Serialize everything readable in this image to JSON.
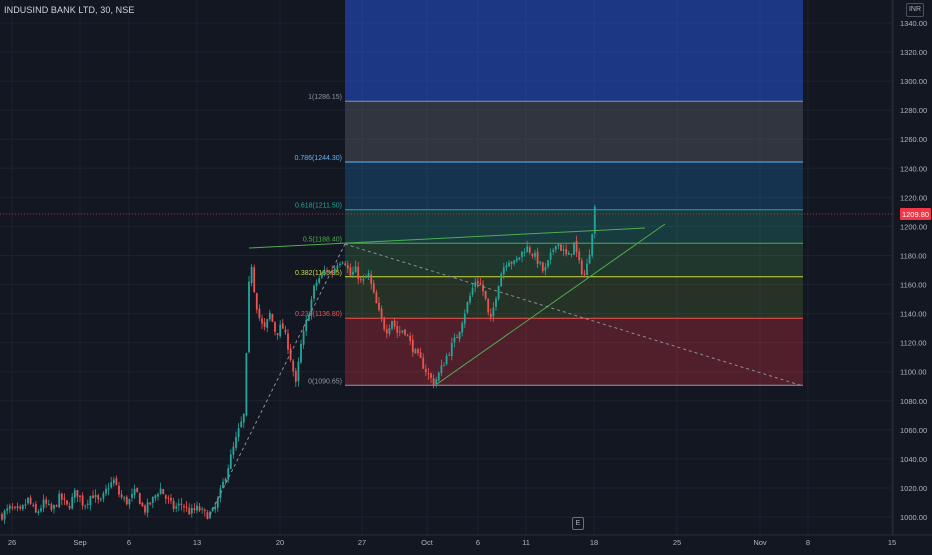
{
  "symbol": {
    "title": "INDUSIND BANK LTD, 30, NSE",
    "currency": "INR"
  },
  "colors": {
    "background": "#131722",
    "up_candle": "#26a69a",
    "down_candle": "#ef5350",
    "current_price_line": "#f23645",
    "trendline": "#4caf50"
  },
  "price_axis": {
    "labels": [
      "1340.00",
      "1320.00",
      "1300.00",
      "1280.00",
      "1260.00",
      "1240.00",
      "1220.00",
      "1200.00",
      "1180.00",
      "1160.00",
      "1140.00",
      "1120.00",
      "1100.00",
      "1080.00",
      "1060.00",
      "1040.00",
      "1020.00",
      "1000.00"
    ],
    "current_price": "1209.80"
  },
  "time_axis": {
    "labels": [
      "26",
      "Sep",
      "6",
      "13",
      "20",
      "27",
      "Oct",
      "6",
      "11",
      "18",
      "25",
      "Nov",
      "8",
      "15"
    ]
  },
  "fib_levels": [
    {
      "label": "1(1286.15)",
      "color": "#8f94a3"
    },
    {
      "label": "0.786(1244.30)",
      "color": "#64b5f6"
    },
    {
      "label": "0.618(1211.50)",
      "color": "#26a69a"
    },
    {
      "label": "0.5(1188.40)",
      "color": "#4caf50"
    },
    {
      "label": "0.382(1165.35)",
      "color": "#cddc39"
    },
    {
      "label": "0.236(1136.80)",
      "color": "#ef5350"
    },
    {
      "label": "0(1090.65)",
      "color": "#9598a1"
    }
  ],
  "toolbar": {
    "events_label": "E"
  },
  "chart_data": {
    "type": "candlestick",
    "title": "INDUSIND BANK LTD, 30, NSE",
    "ylim": [
      995,
      1347
    ],
    "close_path": [
      [
        0,
        1000
      ],
      [
        10,
        1006
      ],
      [
        20,
        1003
      ],
      [
        28,
        1012
      ],
      [
        36,
        1002
      ],
      [
        44,
        1010
      ],
      [
        52,
        1004
      ],
      [
        60,
        1014
      ],
      [
        68,
        1006
      ],
      [
        76,
        1018
      ],
      [
        84,
        1008
      ],
      [
        92,
        1016
      ],
      [
        100,
        1009
      ],
      [
        108,
        1021
      ],
      [
        114,
        1025
      ],
      [
        120,
        1014
      ],
      [
        128,
        1010
      ],
      [
        136,
        1018
      ],
      [
        144,
        1004
      ],
      [
        152,
        1011
      ],
      [
        160,
        1020
      ],
      [
        166,
        1013
      ],
      [
        174,
        1006
      ],
      [
        182,
        1009
      ],
      [
        190,
        1003
      ],
      [
        198,
        1006
      ],
      [
        206,
        1001
      ],
      [
        214,
        1004
      ],
      [
        220,
        1016
      ],
      [
        226,
        1030
      ],
      [
        232,
        1044
      ],
      [
        238,
        1058
      ],
      [
        244,
        1070
      ],
      [
        246,
        1100
      ],
      [
        248,
        1150
      ],
      [
        251,
        1178
      ],
      [
        254,
        1158
      ],
      [
        258,
        1140
      ],
      [
        264,
        1128
      ],
      [
        270,
        1140
      ],
      [
        276,
        1126
      ],
      [
        282,
        1132
      ],
      [
        288,
        1118
      ],
      [
        292,
        1105
      ],
      [
        296,
        1090
      ],
      [
        300,
        1115
      ],
      [
        305,
        1130
      ],
      [
        310,
        1145
      ],
      [
        315,
        1160
      ],
      [
        320,
        1165
      ],
      [
        326,
        1170
      ],
      [
        332,
        1168
      ],
      [
        338,
        1176
      ],
      [
        344,
        1178
      ],
      [
        350,
        1166
      ],
      [
        356,
        1170
      ],
      [
        362,
        1160
      ],
      [
        368,
        1168
      ],
      [
        374,
        1152
      ],
      [
        380,
        1138
      ],
      [
        386,
        1128
      ],
      [
        392,
        1136
      ],
      [
        398,
        1126
      ],
      [
        404,
        1130
      ],
      [
        410,
        1120
      ],
      [
        416,
        1112
      ],
      [
        422,
        1106
      ],
      [
        428,
        1098
      ],
      [
        434,
        1092
      ],
      [
        440,
        1100
      ],
      [
        446,
        1110
      ],
      [
        452,
        1118
      ],
      [
        458,
        1126
      ],
      [
        464,
        1140
      ],
      [
        470,
        1152
      ],
      [
        476,
        1164
      ],
      [
        482,
        1158
      ],
      [
        486,
        1148
      ],
      [
        490,
        1132
      ],
      [
        494,
        1146
      ],
      [
        498,
        1160
      ],
      [
        502,
        1170
      ],
      [
        508,
        1178
      ],
      [
        514,
        1174
      ],
      [
        520,
        1180
      ],
      [
        526,
        1186
      ],
      [
        532,
        1182
      ],
      [
        538,
        1176
      ],
      [
        544,
        1168
      ],
      [
        550,
        1178
      ],
      [
        556,
        1190
      ],
      [
        562,
        1184
      ],
      [
        568,
        1178
      ],
      [
        574,
        1188
      ],
      [
        580,
        1172
      ],
      [
        585,
        1166
      ],
      [
        589,
        1180
      ],
      [
        592,
        1196
      ],
      [
        594,
        1214
      ],
      [
        596,
        1210
      ]
    ]
  }
}
